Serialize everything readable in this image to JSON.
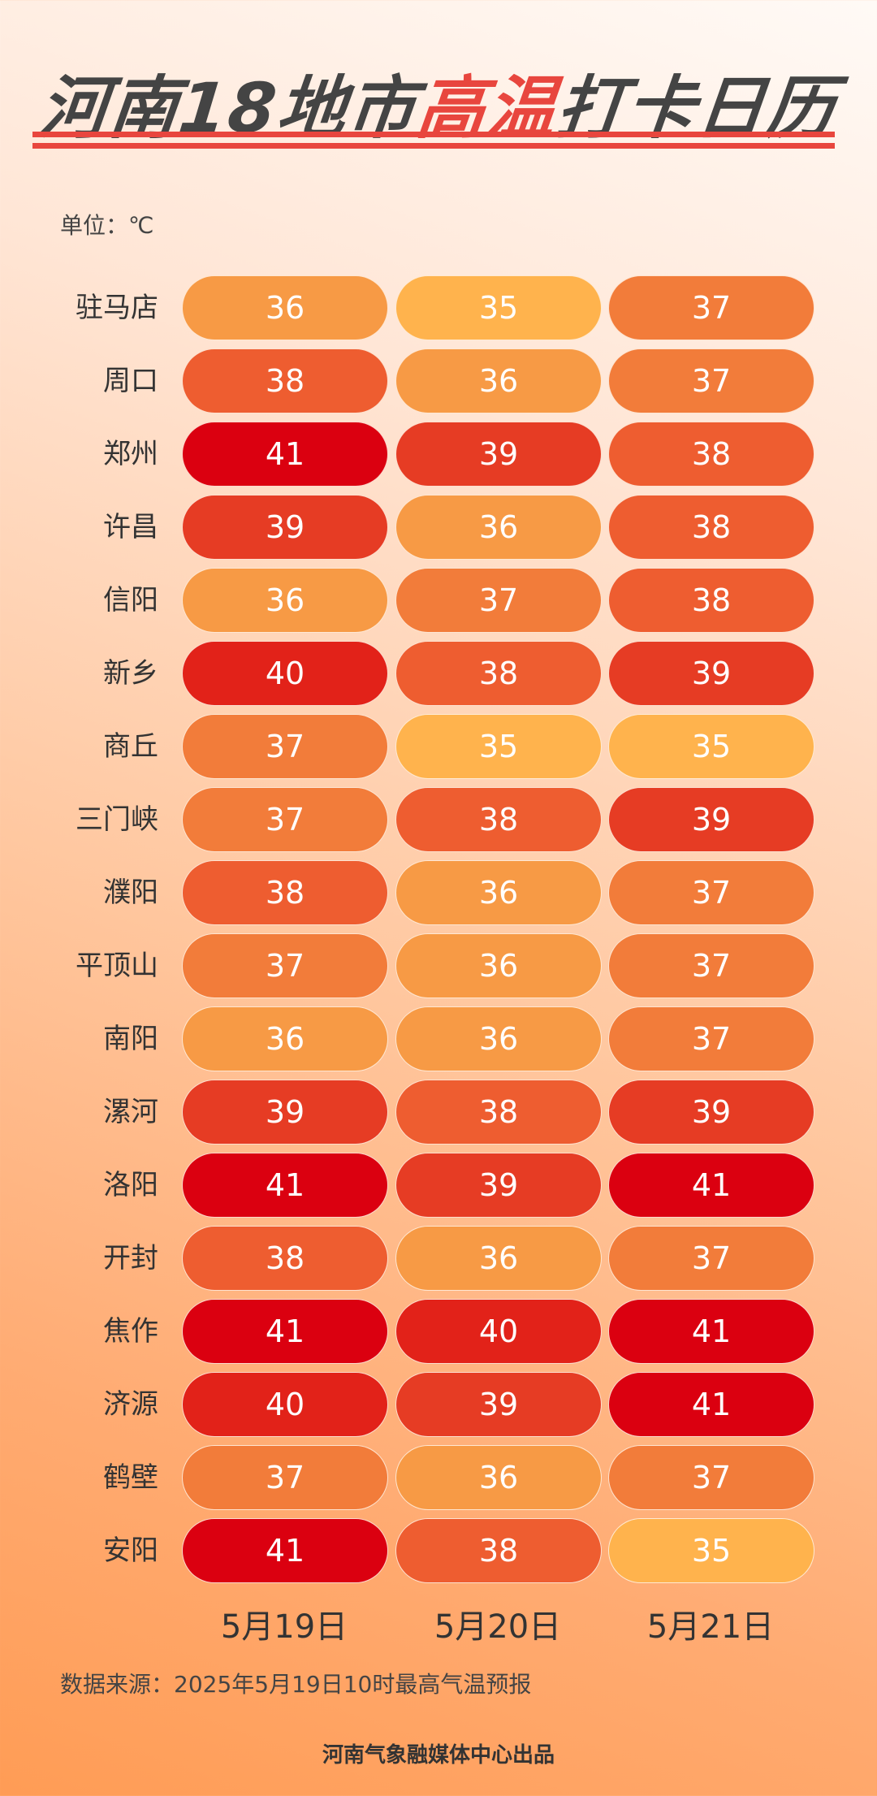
{
  "title": {
    "part1": "河南18地市",
    "highlight": "高温",
    "part2": "打卡日历"
  },
  "unit": "单位：℃",
  "dates": [
    "5月19日",
    "5月20日",
    "5月21日"
  ],
  "rows": [
    {
      "city": "驻马店",
      "temps": [
        36,
        35,
        37
      ]
    },
    {
      "city": "周口",
      "temps": [
        38,
        36,
        37
      ]
    },
    {
      "city": "郑州",
      "temps": [
        41,
        39,
        38
      ]
    },
    {
      "city": "许昌",
      "temps": [
        39,
        36,
        38
      ]
    },
    {
      "city": "信阳",
      "temps": [
        36,
        37,
        38
      ]
    },
    {
      "city": "新乡",
      "temps": [
        40,
        38,
        39
      ]
    },
    {
      "city": "商丘",
      "temps": [
        37,
        35,
        35
      ]
    },
    {
      "city": "三门峡",
      "temps": [
        37,
        38,
        39
      ]
    },
    {
      "city": "濮阳",
      "temps": [
        38,
        36,
        37
      ]
    },
    {
      "city": "平顶山",
      "temps": [
        37,
        36,
        37
      ]
    },
    {
      "city": "南阳",
      "temps": [
        36,
        36,
        37
      ]
    },
    {
      "city": "漯河",
      "temps": [
        39,
        38,
        39
      ]
    },
    {
      "city": "洛阳",
      "temps": [
        41,
        39,
        41
      ]
    },
    {
      "city": "开封",
      "temps": [
        38,
        36,
        37
      ]
    },
    {
      "city": "焦作",
      "temps": [
        41,
        40,
        41
      ]
    },
    {
      "city": "济源",
      "temps": [
        40,
        39,
        41
      ]
    },
    {
      "city": "鹤壁",
      "temps": [
        37,
        36,
        37
      ]
    },
    {
      "city": "安阳",
      "temps": [
        41,
        38,
        35
      ]
    }
  ],
  "colors": {
    "35": "#ffb34d",
    "36": "#f79a45",
    "37": "#f27c3a",
    "38": "#ee5d30",
    "39": "#e63c24",
    "40": "#e22219",
    "41": "#db0010"
  },
  "source": "数据来源：2025年5月19日10时最高气温预报",
  "credit": "河南气象融媒体中心出品"
}
